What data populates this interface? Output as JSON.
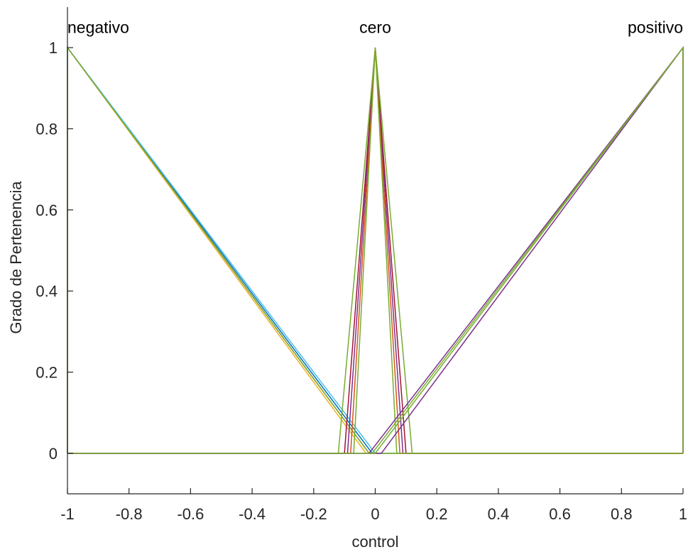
{
  "chart_data": {
    "type": "line",
    "title": "",
    "xlabel": "control",
    "ylabel": "Grado de Pertenencia",
    "xlim": [
      -1,
      1
    ],
    "ylim": [
      -0.1,
      1.1
    ],
    "xticks": [
      -1,
      -0.8,
      -0.6,
      -0.4,
      -0.2,
      0,
      0.2,
      0.4,
      0.6,
      0.8,
      1
    ],
    "xtick_labels": [
      "-1",
      "-0.8",
      "-0.6",
      "-0.4",
      "-0.2",
      "0",
      "0.2",
      "0.4",
      "0.6",
      "0.8",
      "1"
    ],
    "yticks": [
      0,
      0.2,
      0.4,
      0.6,
      0.8,
      1
    ],
    "ytick_labels": [
      "0",
      "0.2",
      "0.4",
      "0.6",
      "0.8",
      "1"
    ],
    "grid": false,
    "annotations": [
      {
        "text": "negativo",
        "x": -1,
        "y": 1.05,
        "align": "start"
      },
      {
        "text": "cero",
        "x": 0,
        "y": 1.05,
        "align": "middle"
      },
      {
        "text": "positivo",
        "x": 1,
        "y": 1.05,
        "align": "end"
      }
    ],
    "series": [
      {
        "color": "#0072BD",
        "x": [
          -1,
          -1,
          -0.01,
          1
        ],
        "y": [
          0,
          1,
          0,
          0
        ]
      },
      {
        "color": "#D95319",
        "x": [
          -1,
          -1,
          -0.02,
          1
        ],
        "y": [
          0,
          1,
          0,
          0
        ]
      },
      {
        "color": "#EDB120",
        "x": [
          -1,
          -1,
          -0.03,
          1
        ],
        "y": [
          0,
          1,
          0,
          0
        ]
      },
      {
        "color": "#4DBEEE",
        "x": [
          -1,
          -1,
          0.0,
          1
        ],
        "y": [
          0,
          1,
          0,
          0
        ]
      },
      {
        "color": "#77AC30",
        "x": [
          -1,
          -1,
          -0.02,
          1
        ],
        "y": [
          0,
          1,
          0,
          0
        ]
      },
      {
        "color": "#A2142F",
        "x": [
          -1,
          -0.1,
          0,
          0.1,
          1
        ],
        "y": [
          0,
          0,
          1,
          0,
          0
        ]
      },
      {
        "color": "#7E2F8E",
        "x": [
          -1,
          -0.09,
          0,
          0.09,
          1
        ],
        "y": [
          0,
          0,
          1,
          0,
          0
        ]
      },
      {
        "color": "#77AC30",
        "x": [
          -1,
          -0.12,
          0,
          0.12,
          1
        ],
        "y": [
          0,
          0,
          1,
          0,
          0
        ]
      },
      {
        "color": "#D95319",
        "x": [
          -1,
          -0.08,
          0,
          0.08,
          1
        ],
        "y": [
          0,
          0,
          1,
          0,
          0
        ]
      },
      {
        "color": "#77AC30",
        "x": [
          -1,
          -0.07,
          0,
          0.07,
          1
        ],
        "y": [
          0,
          0,
          1,
          0,
          0
        ]
      },
      {
        "color": "#7E2F8E",
        "x": [
          -1,
          -0.02,
          1,
          1
        ],
        "y": [
          0,
          0,
          1,
          0
        ]
      },
      {
        "color": "#77AC30",
        "x": [
          -1,
          -0.01,
          1,
          1
        ],
        "y": [
          0,
          0,
          1,
          0
        ]
      },
      {
        "color": "#7E2F8E",
        "x": [
          -1,
          0.02,
          1,
          1
        ],
        "y": [
          0,
          0,
          1,
          0
        ]
      },
      {
        "color": "#77AC30",
        "x": [
          -1,
          0.0,
          1,
          1
        ],
        "y": [
          0,
          0,
          1,
          0
        ]
      }
    ]
  }
}
